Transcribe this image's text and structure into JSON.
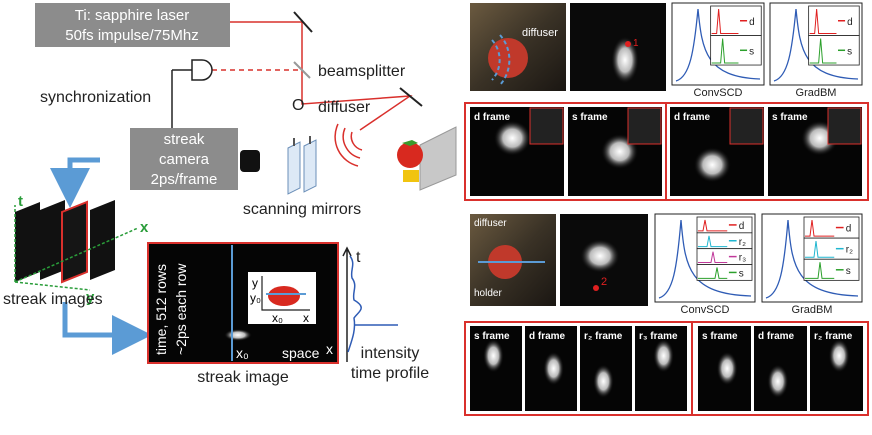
{
  "setup": {
    "laser": [
      "Ti: sapphire laser",
      "50fs impulse/75Mhz"
    ],
    "beamsplitter": "beamsplitter",
    "synchronization": "synchronization",
    "object_label": "O",
    "diffuser": "diffuser",
    "camera": [
      "streak",
      "camera",
      "2ps/frame"
    ],
    "mirrors": "scanning mirrors"
  },
  "streak_stack": {
    "t": "t",
    "x": "x",
    "y": "y",
    "label": "streak images"
  },
  "streak_image": {
    "rows": "time, 512 rows",
    "row_time": "~2ps each row",
    "x0": "x₀",
    "space": "space",
    "x": "x",
    "inset_y": "y",
    "inset_y0": "y₀",
    "inset_x0": "x₀",
    "inset_x": "x",
    "label": "streak image"
  },
  "profile": {
    "t": "t",
    "label": [
      "intensity",
      "time profile"
    ]
  },
  "scene1": {
    "diffuser": "diffuser",
    "point": "1",
    "convscd": {
      "legend": [
        "d",
        "s"
      ],
      "label": "ConvSCD"
    },
    "gradbm": {
      "legend": [
        "d",
        "s"
      ],
      "label": "GradBM"
    },
    "frames": [
      "d frame",
      "s frame",
      "d frame",
      "s frame"
    ]
  },
  "scene2": {
    "diffuser": "diffuser",
    "holder": "holder",
    "point": "2",
    "convscd": {
      "legend": [
        "d",
        "r₂",
        "r₃",
        "s"
      ],
      "label": "ConvSCD"
    },
    "gradbm": {
      "legend": [
        "d",
        "r₂",
        "s"
      ],
      "label": "GradBM"
    },
    "frames_a": [
      "s frame",
      "d frame",
      "r₂ frame",
      "r₃ frame"
    ],
    "frames_b": [
      "s frame",
      "d frame",
      "r₂ frame"
    ]
  }
}
